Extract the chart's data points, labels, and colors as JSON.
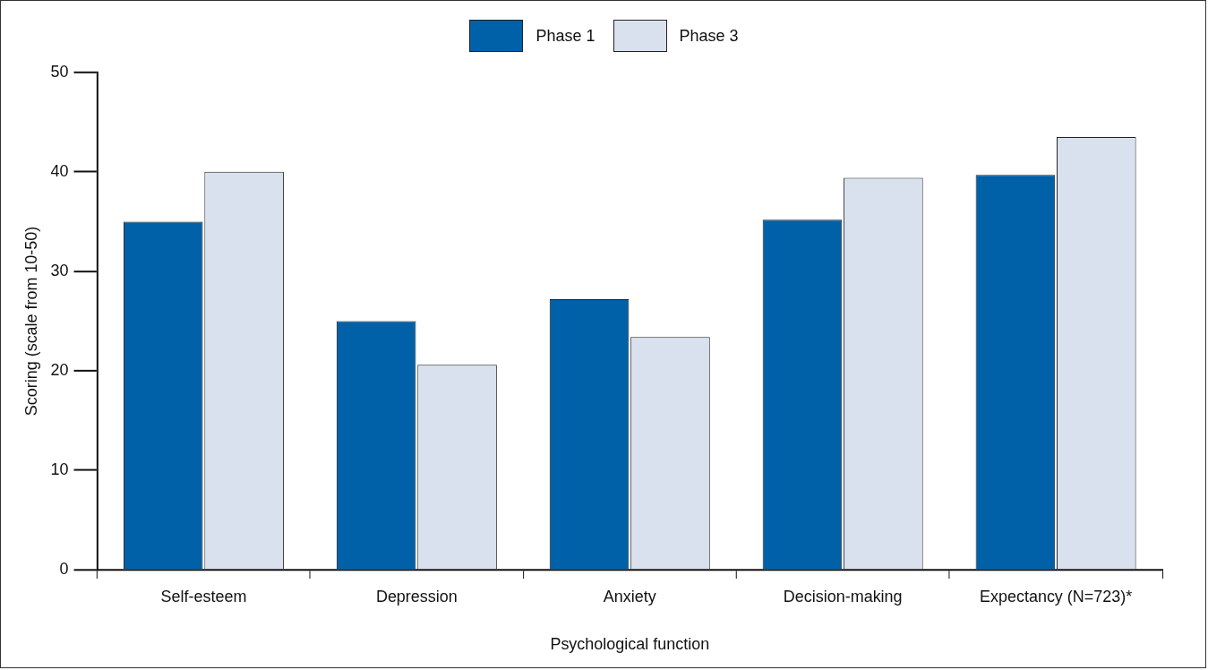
{
  "chart_data": {
    "type": "bar",
    "xlabel": "Psychological function",
    "ylabel": "Scoring (scale from 10-50)",
    "categories": [
      "Self-esteem",
      "Depression",
      "Anxiety",
      "Decision-making",
      "Expectancy (N=723)*"
    ],
    "series": [
      {
        "name": "Phase 1",
        "color": "#0060a8",
        "values": [
          35,
          25,
          27.2,
          35.2,
          39.7
        ]
      },
      {
        "name": "Phase 3",
        "color": "#d9e1ef",
        "values": [
          40,
          20.6,
          23.4,
          39.4,
          43.5
        ]
      }
    ],
    "ylim": [
      0,
      50
    ],
    "yticks": [
      0,
      10,
      20,
      30,
      40,
      50
    ],
    "grid": false,
    "legend": "top"
  }
}
